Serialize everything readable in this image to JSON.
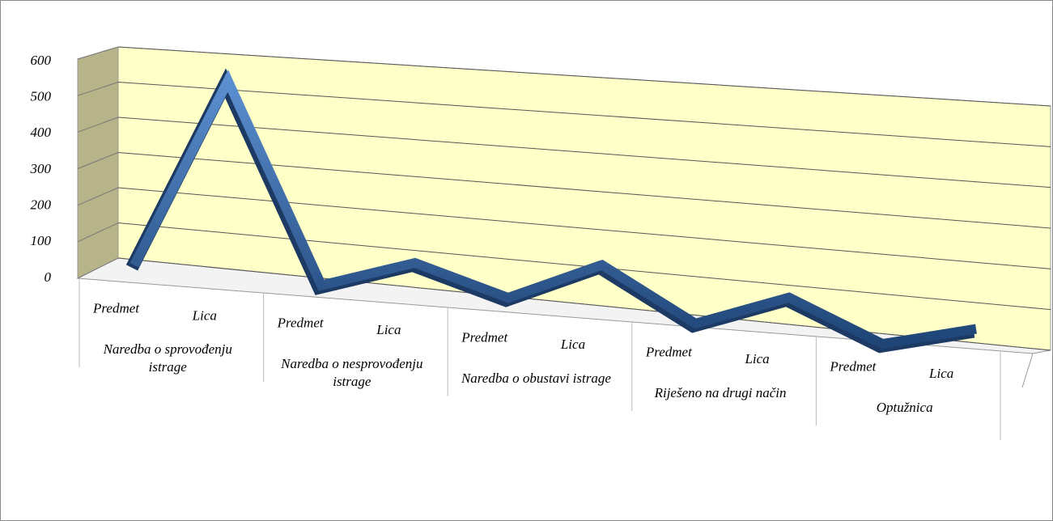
{
  "chart_data": {
    "type": "line3d",
    "categories": [
      "Predmet",
      "Lica",
      "Predmet",
      "Lica",
      "Predmet",
      "Lica",
      "Predmet",
      "Lica",
      "Predmet",
      "Lica"
    ],
    "groups": [
      "Naredba o sprovođenju istrage",
      "Naredba o nesprovođenju istrage",
      "Naredba o obustavi istrage",
      "Riješeno na drugi način",
      "Optužnica"
    ],
    "values": [
      30,
      570,
      25,
      110,
      40,
      150,
      20,
      110,
      15,
      75
    ],
    "color": "#2f5f9e",
    "ylim": [
      0,
      600
    ],
    "yticks": [
      0,
      100,
      200,
      300,
      400,
      500,
      600
    ],
    "grid": true
  }
}
